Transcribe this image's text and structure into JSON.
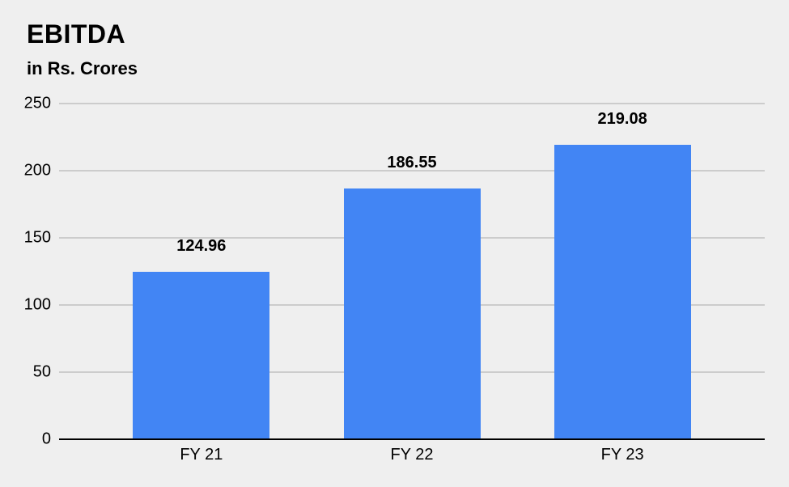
{
  "header": {
    "title": "EBITDA",
    "subtitle": "in Rs. Crores"
  },
  "chart_data": {
    "type": "bar",
    "title": "EBITDA",
    "subtitle": "in Rs. Crores",
    "categories": [
      "FY 21",
      "FY 22",
      "FY 23"
    ],
    "values": [
      124.96,
      186.55,
      219.08
    ],
    "value_labels": [
      "124.96",
      "186.55",
      "219.08"
    ],
    "xlabel": "",
    "ylabel": "",
    "ylim": [
      0,
      250
    ],
    "yticks": [
      0,
      50,
      100,
      150,
      200,
      250
    ],
    "grid": "horizontal",
    "legend": "none",
    "colors": {
      "bar": "#4285f4",
      "background": "#efefef",
      "gridline": "#cccccc",
      "zero_axis": "#000000",
      "text": "#000000"
    }
  }
}
